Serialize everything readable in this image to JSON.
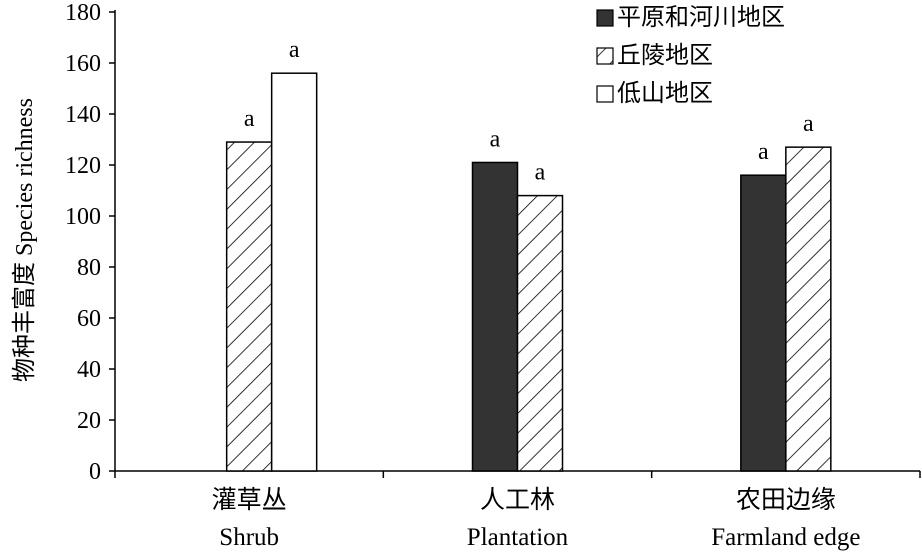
{
  "chart_data": {
    "type": "bar",
    "ylabel": "物种丰富度 Species richness",
    "ylim": [
      0,
      180
    ],
    "yticks": [
      0,
      20,
      40,
      60,
      80,
      100,
      120,
      140,
      160,
      180
    ],
    "grid": false,
    "legend_position": "top-right",
    "categories": [
      {
        "cn": "灌草丛",
        "en": "Shrub"
      },
      {
        "cn": "人工林",
        "en": "Plantation"
      },
      {
        "cn": "农田边缘",
        "en": "Farmland edge"
      }
    ],
    "series": [
      {
        "name": "平原和河川地区",
        "pattern": "solid",
        "color": "#333333",
        "values": [
          null,
          121,
          116
        ],
        "labels": [
          null,
          "a",
          "a"
        ]
      },
      {
        "name": "丘陵地区",
        "pattern": "hatch",
        "color": "#000000",
        "values": [
          129,
          108,
          127
        ],
        "labels": [
          "a",
          "a",
          "a"
        ]
      },
      {
        "name": "低山地区",
        "pattern": "empty",
        "color": "#000000",
        "values": [
          156,
          null,
          null
        ],
        "labels": [
          "a",
          null,
          null
        ]
      }
    ]
  }
}
